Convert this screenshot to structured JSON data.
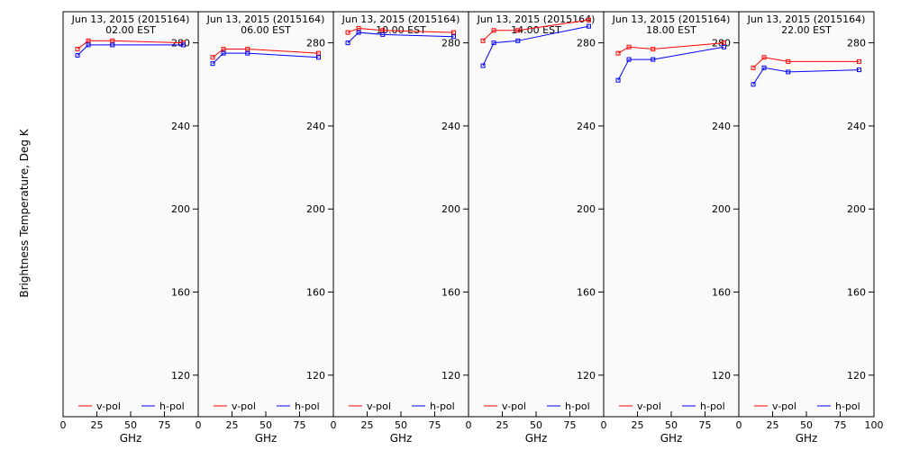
{
  "figure": {
    "ylabel": "Brightness Temperature, Deg K",
    "background": "#fafafa"
  },
  "chart_data": [
    {
      "type": "line",
      "title": "Jun 13, 2015 (2015164)",
      "subtitle": "02.00 EST",
      "xlabel": "GHz",
      "ylabel": "Brightness Temperature, Deg K",
      "xlim": [
        0,
        100
      ],
      "ylim": [
        100,
        295
      ],
      "xticks": [
        0,
        25,
        50,
        75
      ],
      "yticks": [
        120,
        160,
        200,
        240,
        280
      ],
      "grid": false,
      "legend": "bottom",
      "x": [
        10.7,
        18.7,
        36.5,
        89
      ],
      "series": [
        {
          "name": "v-pol",
          "color": "#ff0000",
          "values": [
            277,
            281,
            281,
            280
          ]
        },
        {
          "name": "h-pol",
          "color": "#0000ff",
          "values": [
            274,
            279,
            279,
            279
          ]
        }
      ]
    },
    {
      "type": "line",
      "title": "Jun 13, 2015 (2015164)",
      "subtitle": "06.00 EST",
      "xlabel": "GHz",
      "ylabel": "",
      "xlim": [
        0,
        100
      ],
      "ylim": [
        100,
        295
      ],
      "xticks": [
        0,
        25,
        50,
        75
      ],
      "yticks": [
        120,
        160,
        200,
        240,
        280
      ],
      "grid": false,
      "legend": "bottom",
      "x": [
        10.7,
        18.7,
        36.5,
        89
      ],
      "series": [
        {
          "name": "v-pol",
          "color": "#ff0000",
          "values": [
            273,
            277,
            277,
            275
          ]
        },
        {
          "name": "h-pol",
          "color": "#0000ff",
          "values": [
            270,
            275,
            275,
            273
          ]
        }
      ]
    },
    {
      "type": "line",
      "title": "Jun 13, 2015 (2015164)",
      "subtitle": "10.00 EST",
      "xlabel": "GHz",
      "ylabel": "",
      "xlim": [
        0,
        100
      ],
      "ylim": [
        100,
        295
      ],
      "xticks": [
        0,
        25,
        50,
        75
      ],
      "yticks": [
        120,
        160,
        200,
        240,
        280
      ],
      "grid": false,
      "legend": "bottom",
      "x": [
        10.7,
        18.7,
        36.5,
        89
      ],
      "series": [
        {
          "name": "v-pol",
          "color": "#ff0000",
          "values": [
            285,
            287,
            286,
            285
          ]
        },
        {
          "name": "h-pol",
          "color": "#0000ff",
          "values": [
            280,
            285,
            284,
            283
          ]
        }
      ]
    },
    {
      "type": "line",
      "title": "Jun 13, 2015 (2015164)",
      "subtitle": "14.00 EST",
      "xlabel": "GHz",
      "ylabel": "",
      "xlim": [
        0,
        100
      ],
      "ylim": [
        100,
        295
      ],
      "xticks": [
        0,
        25,
        50,
        75
      ],
      "yticks": [
        120,
        160,
        200,
        240,
        280
      ],
      "grid": false,
      "legend": "bottom",
      "x": [
        10.7,
        18.7,
        36.5,
        89
      ],
      "series": [
        {
          "name": "v-pol",
          "color": "#ff0000",
          "values": [
            281,
            286,
            286,
            291
          ]
        },
        {
          "name": "h-pol",
          "color": "#0000ff",
          "values": [
            269,
            280,
            281,
            288
          ]
        }
      ]
    },
    {
      "type": "line",
      "title": "Jun 13, 2015 (2015164)",
      "subtitle": "18.00 EST",
      "xlabel": "GHz",
      "ylabel": "",
      "xlim": [
        0,
        100
      ],
      "ylim": [
        100,
        295
      ],
      "xticks": [
        0,
        25,
        50,
        75
      ],
      "yticks": [
        120,
        160,
        200,
        240,
        280
      ],
      "grid": false,
      "legend": "bottom",
      "x": [
        10.7,
        18.7,
        36.5,
        89
      ],
      "series": [
        {
          "name": "v-pol",
          "color": "#ff0000",
          "values": [
            275,
            278,
            277,
            280
          ]
        },
        {
          "name": "h-pol",
          "color": "#0000ff",
          "values": [
            262,
            272,
            272,
            278
          ]
        }
      ]
    },
    {
      "type": "line",
      "title": "Jun 13, 2015 (2015164)",
      "subtitle": "22.00 EST",
      "xlabel": "GHz",
      "ylabel": "",
      "xlim": [
        0,
        100
      ],
      "ylim": [
        100,
        295
      ],
      "xticks": [
        0,
        25,
        50,
        75,
        100
      ],
      "yticks": [
        120,
        160,
        200,
        240,
        280
      ],
      "grid": false,
      "legend": "bottom",
      "x": [
        10.7,
        18.7,
        36.5,
        89
      ],
      "series": [
        {
          "name": "v-pol",
          "color": "#ff0000",
          "values": [
            268,
            273,
            271,
            271
          ]
        },
        {
          "name": "h-pol",
          "color": "#0000ff",
          "values": [
            260,
            268,
            266,
            267
          ]
        }
      ]
    }
  ]
}
